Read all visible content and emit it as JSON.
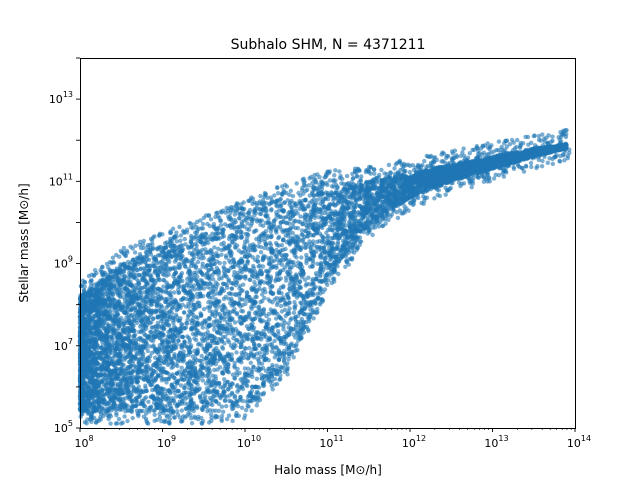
{
  "chart_data": {
    "type": "scatter",
    "title": "Subhalo SHM, N = 4371211",
    "xlabel": "Halo mass [M⊙/h]",
    "ylabel": "Stellar mass [M⊙/h]",
    "x_scale": "log",
    "y_scale": "log",
    "xlim": [
      100000000.0,
      100000000000000.0
    ],
    "ylim": [
      100000.0,
      100000000000000.0
    ],
    "x_ticks": [
      "10^8",
      "10^9",
      "10^10",
      "10^11",
      "10^12",
      "10^13",
      "10^14"
    ],
    "y_ticks": [
      "10^5",
      "10^7",
      "10^9",
      "10^11",
      "10^13"
    ],
    "grid": false,
    "marker_color": "#1f77b4",
    "marker_alpha": 0.6,
    "density_envelope": {
      "description_x_log10": [
        8.0,
        8.5,
        9.0,
        9.5,
        10.0,
        10.5,
        11.0,
        11.5,
        12.0,
        12.5,
        13.0,
        13.5,
        13.9
      ],
      "upper_log10_y": [
        8.2,
        9.0,
        9.4,
        9.8,
        10.2,
        10.6,
        10.9,
        11.0,
        11.2,
        11.4,
        11.6,
        11.8,
        11.9
      ],
      "lower_log10_y": [
        5.4,
        5.4,
        5.4,
        5.4,
        5.5,
        6.5,
        8.6,
        9.9,
        10.6,
        11.0,
        11.3,
        11.6,
        11.8
      ]
    }
  }
}
